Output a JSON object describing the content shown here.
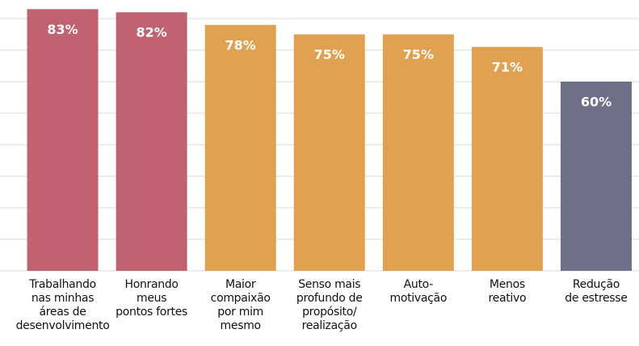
{
  "chart_data": {
    "type": "bar",
    "categories": [
      "Trabalhando\nnas minhas\náreas de\ndesenvolvimento",
      "Honrando\nmeus\npontos fortes",
      "Maior\ncompaixão\npor mim\nmesmo",
      "Senso mais\nprofundo de\npropósito/\nrealização",
      "Auto-\nmotivação",
      "Menos\nreativo",
      "Redução\nde estresse"
    ],
    "values": [
      83,
      82,
      78,
      75,
      75,
      71,
      60
    ],
    "value_labels": [
      "83%",
      "82%",
      "78%",
      "75%",
      "75%",
      "71%",
      "60%"
    ],
    "colors": [
      "#c0626f",
      "#c0626f",
      "#e0a151",
      "#e0a151",
      "#e0a151",
      "#e0a151",
      "#6e7088"
    ],
    "ylim": [
      0,
      85
    ],
    "yticks": [
      0,
      10,
      20,
      30,
      40,
      50,
      60,
      70,
      80
    ],
    "grid": true
  }
}
